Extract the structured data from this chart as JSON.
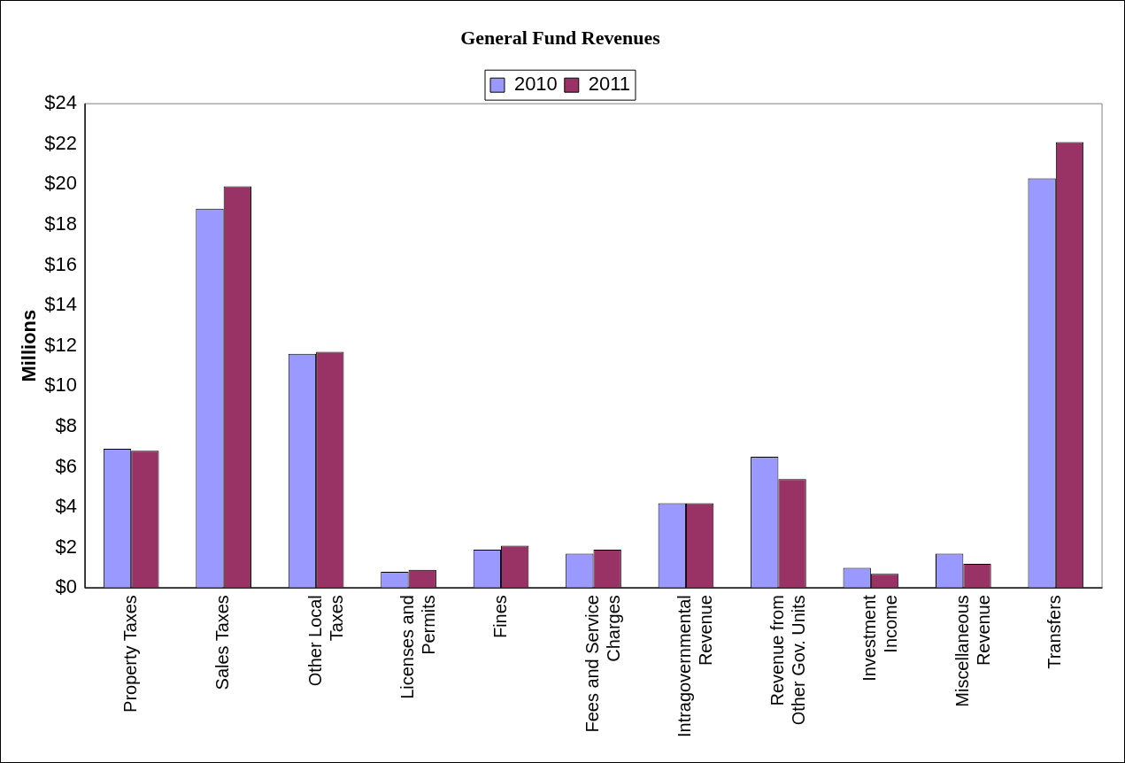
{
  "chart_data": {
    "type": "bar",
    "title": "General Fund Revenues",
    "ylabel": "Millions",
    "categories": [
      "Property Taxes",
      "Sales Taxes",
      "Other Local Taxes",
      "Licenses and Permits",
      "Fines",
      "Fees and Service Charges",
      "Intragovernmental Revenue",
      "Revenue from Other Gov. Units",
      "Investment Income",
      "Miscellaneous Revenue",
      "Transfers"
    ],
    "series": [
      {
        "name": "2010",
        "color": "#9999ff",
        "values": [
          6.9,
          18.8,
          11.6,
          0.8,
          1.9,
          1.7,
          4.2,
          6.5,
          1.0,
          1.7,
          20.3
        ]
      },
      {
        "name": "2011",
        "color": "#993366",
        "values": [
          6.8,
          19.9,
          11.7,
          0.9,
          2.1,
          1.9,
          4.2,
          5.4,
          0.7,
          1.2,
          22.1
        ]
      }
    ],
    "ylim": [
      0,
      24
    ],
    "yticks": [
      {
        "value": 0,
        "label": "$0"
      },
      {
        "value": 2,
        "label": "$2"
      },
      {
        "value": 4,
        "label": "$4"
      },
      {
        "value": 6,
        "label": "$6"
      },
      {
        "value": 8,
        "label": "$8"
      },
      {
        "value": 10,
        "label": "$10"
      },
      {
        "value": 12,
        "label": "$12"
      },
      {
        "value": 14,
        "label": "$14"
      },
      {
        "value": 16,
        "label": "$16"
      },
      {
        "value": 18,
        "label": "$18"
      },
      {
        "value": 20,
        "label": "$20"
      },
      {
        "value": 22,
        "label": "$22"
      },
      {
        "value": 24,
        "label": "$24"
      }
    ],
    "grid": false,
    "legend": "top"
  }
}
